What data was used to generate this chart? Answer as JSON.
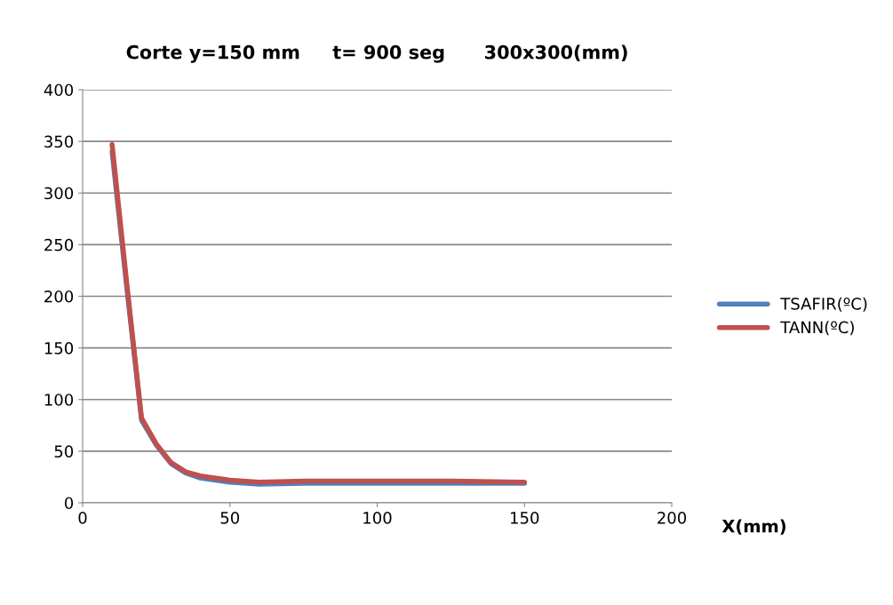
{
  "chart_data": {
    "type": "line",
    "title": "Corte y=150 mm     t= 900 seg      300x300(mm)",
    "xlabel": "X(mm)",
    "x": [
      10,
      15,
      20,
      25,
      30,
      35,
      40,
      50,
      60,
      75,
      100,
      125,
      150
    ],
    "series": [
      {
        "name": "TSAFIR(ºC)",
        "color": "#4f81bd",
        "values": [
          340,
          208,
          80,
          56,
          38,
          29,
          24,
          20,
          18,
          19,
          19,
          19,
          19
        ]
      },
      {
        "name": "TANN(ºC)",
        "color": "#c0504d",
        "values": [
          347,
          212,
          82,
          57,
          39,
          30,
          26,
          22,
          20,
          21,
          21,
          21,
          20
        ]
      }
    ],
    "xlim": [
      0,
      200
    ],
    "xticks": [
      0,
      50,
      100,
      150,
      200
    ],
    "ylim": [
      0,
      400
    ],
    "yticks": [
      0,
      50,
      100,
      150,
      200,
      250,
      300,
      350,
      400
    ],
    "grid": "y",
    "legend": "right",
    "marker": "none",
    "line_style": "solid"
  }
}
